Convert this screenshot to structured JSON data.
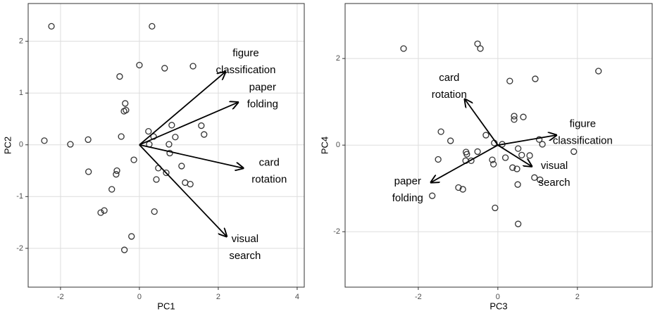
{
  "chart_data": [
    {
      "type": "biplot",
      "x_label": "PC1",
      "y_label": "PC2",
      "xlim": [
        -2.82,
        4.18
      ],
      "ylim": [
        -2.75,
        2.73
      ],
      "xticks": [
        -2,
        0,
        2,
        4
      ],
      "yticks": [
        -2,
        -1,
        0,
        1,
        2
      ],
      "grid": true,
      "x": [
        -2.23,
        0.32,
        0,
        0.64,
        1.36,
        -0.5,
        -0.36,
        -0.39,
        -0.34,
        -2.41,
        -1.75,
        -1.3,
        -0.46,
        0.23,
        0.36,
        0.82,
        0.91,
        1.57,
        1.64,
        0.25,
        0.75,
        0.77,
        -0.14,
        -1.29,
        -0.57,
        -0.59,
        0.48,
        0.68,
        1.07,
        0.43,
        1.16,
        1.29,
        -0.7,
        -0.89,
        -0.98,
        0.38,
        -0.2,
        -0.38
      ],
      "y": [
        2.29,
        2.29,
        1.54,
        1.48,
        1.52,
        1.32,
        0.8,
        0.65,
        0.67,
        0.08,
        0.01,
        0.1,
        0.16,
        0.26,
        0.16,
        0.38,
        0.15,
        0.37,
        0.2,
        0.01,
        0.01,
        -0.16,
        -0.29,
        -0.52,
        -0.5,
        -0.57,
        -0.45,
        -0.54,
        -0.41,
        -0.67,
        -0.73,
        -0.76,
        -0.86,
        -1.27,
        -1.31,
        -1.29,
        -1.77,
        -2.03
      ],
      "arrows": [
        {
          "label_lines": [
            "figure",
            "classification"
          ],
          "x": 2.18,
          "y": 1.41
        },
        {
          "label_lines": [
            "paper",
            "folding"
          ],
          "x": 2.5,
          "y": 0.82
        },
        {
          "label_lines": [
            "card",
            "rotation"
          ],
          "x": 2.63,
          "y": -0.45
        },
        {
          "label_lines": [
            "visual",
            "search"
          ],
          "x": 2.21,
          "y": -1.77
        }
      ]
    },
    {
      "type": "biplot",
      "x_label": "PC3",
      "y_label": "PC4",
      "xlim": [
        -3.84,
        3.88
      ],
      "ylim": [
        -3.28,
        3.27
      ],
      "xticks": [
        -2,
        0,
        2
      ],
      "yticks": [
        -2,
        0,
        2
      ],
      "grid": true,
      "x": [
        -2.37,
        -0.51,
        -0.44,
        0.3,
        0.94,
        2.53,
        0.41,
        0.41,
        0.64,
        -1.43,
        -0.3,
        -1.19,
        -0.09,
        0.11,
        1.04,
        1.91,
        -1.5,
        -0.8,
        -0.78,
        -0.51,
        -0.81,
        -0.67,
        -0.14,
        -0.11,
        0.19,
        0.51,
        0.6,
        0.8,
        1.12,
        0.37,
        0.48,
        0.92,
        1.06,
        0.5,
        -0.99,
        -0.88,
        -1.65,
        -0.07,
        0.51
      ],
      "y": [
        2.23,
        2.34,
        2.23,
        1.48,
        1.53,
        1.71,
        0.67,
        0.59,
        0.65,
        0.31,
        0.23,
        0.1,
        0.05,
        0.02,
        0.13,
        -0.15,
        -0.33,
        -0.16,
        -0.21,
        -0.15,
        -0.36,
        -0.36,
        -0.34,
        -0.44,
        -0.29,
        -0.08,
        -0.23,
        -0.24,
        0.02,
        -0.52,
        -0.55,
        -0.75,
        -0.8,
        -0.91,
        -0.98,
        -1.02,
        -1.17,
        -1.45,
        -1.82
      ],
      "arrows": [
        {
          "label_lines": [
            "card",
            "rotation"
          ],
          "x": -0.83,
          "y": 1.06
        },
        {
          "label_lines": [
            "figure",
            "classification"
          ],
          "x": 1.47,
          "y": 0.23
        },
        {
          "label_lines": [
            "visual",
            "search"
          ],
          "x": 0.85,
          "y": -0.49
        },
        {
          "label_lines": [
            "paper",
            "folding"
          ],
          "x": -1.68,
          "y": -0.86
        }
      ]
    }
  ]
}
